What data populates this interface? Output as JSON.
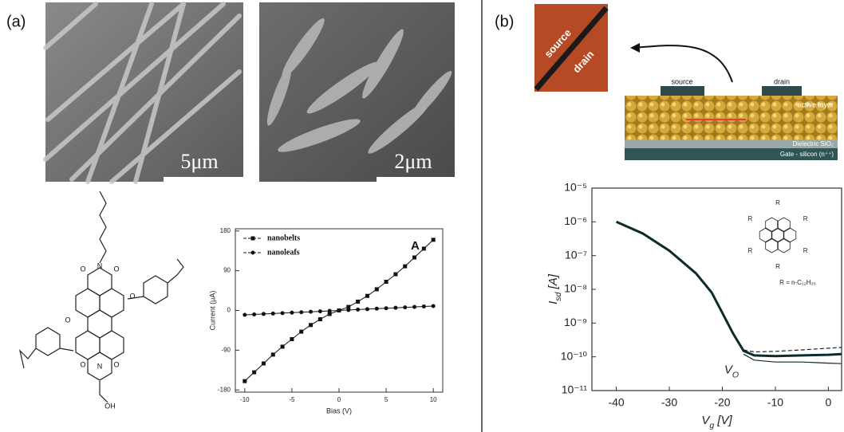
{
  "panel_a": {
    "label": "(a)",
    "scale_bars": [
      "5μm",
      "2μm"
    ],
    "molecule_labels": [
      "O",
      "N",
      "O",
      "O",
      "O",
      "O",
      "N",
      "O",
      "OH"
    ]
  },
  "panel_b": {
    "label": "(b)",
    "device_labels": [
      "source",
      "drain",
      "source",
      "drain",
      "active layer",
      "Dielectric SiO₂",
      "Gate - silicon (n⁺⁺)"
    ]
  },
  "chart_data": [
    {
      "type": "line",
      "annotation": "A",
      "xlabel": "Bias (V)",
      "ylabel": "Current (μA)",
      "x": [
        -10,
        -9,
        -8,
        -7,
        -6,
        -5,
        -4,
        -3,
        -2,
        -1,
        0,
        1,
        2,
        3,
        4,
        5,
        6,
        7,
        8,
        9,
        10
      ],
      "series": [
        {
          "name": "nanobelts",
          "marker": "square",
          "color": "#111111",
          "values": [
            -160,
            -140,
            -120,
            -100,
            -82,
            -65,
            -48,
            -33,
            -20,
            -8,
            0,
            8,
            20,
            33,
            48,
            65,
            82,
            100,
            120,
            140,
            160
          ]
        },
        {
          "name": "nanoleafs",
          "marker": "circle",
          "color": "#111111",
          "values": [
            -10,
            -9,
            -8,
            -7,
            -6,
            -5,
            -4,
            -3,
            -2,
            -1,
            0,
            1,
            2,
            3,
            4,
            5,
            6,
            7,
            8,
            9,
            10
          ]
        }
      ],
      "xlim": [
        -11,
        11
      ],
      "ylim": [
        -185,
        185
      ],
      "xticks": [
        -10,
        -5,
        0,
        5,
        10
      ],
      "yticks": [
        -180,
        -90,
        0,
        90,
        180
      ],
      "log_y": false,
      "legend": "top-left"
    },
    {
      "type": "line",
      "xlabel": [
        "V",
        "g",
        " [V]"
      ],
      "ylabel": [
        "I",
        "sd",
        " [A]"
      ],
      "annotation": [
        "V",
        "O"
      ],
      "inset_labels": [
        "R",
        "R",
        "R",
        "R",
        "R",
        "R"
      ],
      "inset_note": "R = n-C₁₂H₂₅",
      "x": [
        -40,
        -35,
        -30,
        -25,
        -22,
        -20,
        -18,
        -16,
        -14,
        -10,
        -5,
        0,
        2.5
      ],
      "series": [
        {
          "color": "#0d2b2b",
          "style": "solid",
          "width": 3,
          "values": [
            1e-06,
            4.5e-07,
            1.4e-07,
            3e-08,
            8e-09,
            2e-09,
            5e-10,
            1.5e-10,
            1.1e-10,
            1.05e-10,
            1.1e-10,
            1.15e-10,
            1.2e-10
          ]
        },
        {
          "color": "#0d2b2b",
          "style": "dashed",
          "width": 1.2,
          "values": [
            null,
            null,
            null,
            null,
            null,
            null,
            null,
            1.6e-10,
            1.4e-10,
            1.45e-10,
            1.6e-10,
            1.8e-10,
            1.9e-10
          ]
        },
        {
          "color": "#0d2b2b",
          "style": "solid",
          "width": 1.2,
          "values": [
            null,
            null,
            null,
            null,
            null,
            null,
            null,
            1.2e-10,
            8e-11,
            7e-11,
            7e-11,
            6.5e-11,
            6.3e-11
          ]
        }
      ],
      "xlim": [
        -44.6,
        2.5
      ],
      "ylim": [
        1e-11,
        1e-05
      ],
      "xticks": [
        -40,
        -30,
        -20,
        -10,
        0
      ],
      "yticks": [
        {
          "value": 1e-11,
          "label": "10⁻¹¹"
        },
        {
          "value": 1e-10,
          "label": "10⁻¹⁰"
        },
        {
          "value": 1e-09,
          "label": "10⁻⁹"
        },
        {
          "value": 1e-08,
          "label": "10⁻⁸"
        },
        {
          "value": 1e-07,
          "label": "10⁻⁷"
        },
        {
          "value": 1e-06,
          "label": "10⁻⁶"
        },
        {
          "value": 1e-05,
          "label": "10⁻⁵"
        }
      ],
      "log_y": true
    }
  ]
}
